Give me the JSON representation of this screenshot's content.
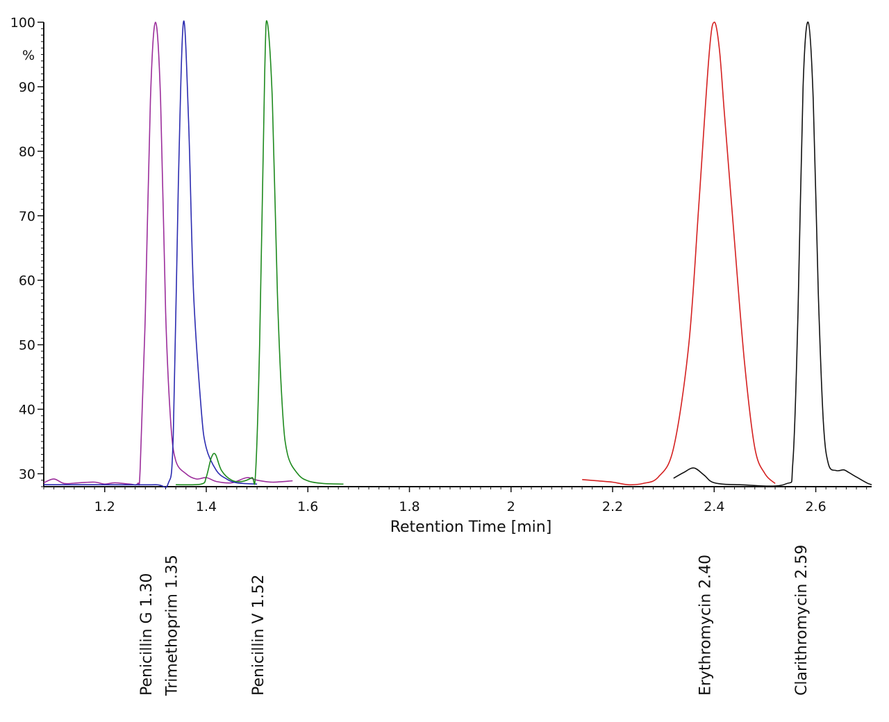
{
  "chart_data": {
    "type": "line",
    "xlabel": "Retention Time [min]",
    "ylabel": "%",
    "xlim": [
      1.08,
      2.71
    ],
    "ylim": [
      28,
      100
    ],
    "xticks": [
      "1.2",
      "1.4",
      "1.6",
      "1.8",
      "2",
      "2.2",
      "2.4",
      "2.6"
    ],
    "yticks": [
      "30",
      "40",
      "50",
      "60",
      "70",
      "80",
      "90",
      "100"
    ],
    "grid": false,
    "series": [
      {
        "color": "#9b2d9b",
        "points": [
          [
            1.08,
            28.6
          ],
          [
            1.1,
            29.2
          ],
          [
            1.12,
            28.5
          ],
          [
            1.15,
            28.6
          ],
          [
            1.18,
            28.7
          ],
          [
            1.2,
            28.4
          ],
          [
            1.22,
            28.6
          ],
          [
            1.25,
            28.4
          ],
          [
            1.265,
            28.5
          ],
          [
            1.27,
            31
          ],
          [
            1.28,
            55
          ],
          [
            1.29,
            88
          ],
          [
            1.3,
            100
          ],
          [
            1.31,
            88
          ],
          [
            1.32,
            55
          ],
          [
            1.33,
            38
          ],
          [
            1.34,
            32
          ],
          [
            1.36,
            30
          ],
          [
            1.38,
            29.2
          ],
          [
            1.4,
            29.4
          ],
          [
            1.42,
            28.8
          ],
          [
            1.45,
            28.6
          ],
          [
            1.48,
            29.4
          ],
          [
            1.5,
            29.0
          ],
          [
            1.53,
            28.7
          ],
          [
            1.57,
            28.9
          ]
        ]
      },
      {
        "color": "#2b2bb0",
        "points": [
          [
            1.08,
            28.3
          ],
          [
            1.2,
            28.3
          ],
          [
            1.3,
            28.3
          ],
          [
            1.325,
            28.5
          ],
          [
            1.335,
            36
          ],
          [
            1.345,
            75
          ],
          [
            1.355,
            100
          ],
          [
            1.365,
            85
          ],
          [
            1.375,
            58
          ],
          [
            1.39,
            40
          ],
          [
            1.4,
            34
          ],
          [
            1.42,
            30.5
          ],
          [
            1.44,
            29.2
          ],
          [
            1.46,
            28.6
          ],
          [
            1.5,
            28.4
          ]
        ]
      },
      {
        "color": "#1e8a1e",
        "points": [
          [
            1.34,
            28.3
          ],
          [
            1.39,
            28.4
          ],
          [
            1.4,
            29.5
          ],
          [
            1.41,
            32.5
          ],
          [
            1.418,
            33.0
          ],
          [
            1.43,
            30.5
          ],
          [
            1.45,
            29.0
          ],
          [
            1.47,
            28.8
          ],
          [
            1.49,
            29.4
          ],
          [
            1.497,
            30
          ],
          [
            1.505,
            50
          ],
          [
            1.515,
            92
          ],
          [
            1.52,
            100
          ],
          [
            1.53,
            88
          ],
          [
            1.54,
            58
          ],
          [
            1.55,
            40
          ],
          [
            1.56,
            33
          ],
          [
            1.58,
            30
          ],
          [
            1.6,
            28.9
          ],
          [
            1.63,
            28.5
          ],
          [
            1.67,
            28.4
          ]
        ]
      },
      {
        "color": "#d42020",
        "points": [
          [
            2.14,
            29.1
          ],
          [
            2.17,
            28.9
          ],
          [
            2.2,
            28.7
          ],
          [
            2.23,
            28.3
          ],
          [
            2.26,
            28.5
          ],
          [
            2.29,
            29.5
          ],
          [
            2.32,
            34
          ],
          [
            2.35,
            50
          ],
          [
            2.37,
            72
          ],
          [
            2.39,
            95
          ],
          [
            2.4,
            100
          ],
          [
            2.41,
            96
          ],
          [
            2.42,
            86
          ],
          [
            2.44,
            66
          ],
          [
            2.46,
            47
          ],
          [
            2.48,
            34
          ],
          [
            2.5,
            30
          ],
          [
            2.52,
            28.5
          ]
        ]
      },
      {
        "color": "#111111",
        "points": [
          [
            2.32,
            29.3
          ],
          [
            2.34,
            30.2
          ],
          [
            2.36,
            30.9
          ],
          [
            2.38,
            29.8
          ],
          [
            2.4,
            28.6
          ],
          [
            2.45,
            28.3
          ],
          [
            2.54,
            28.4
          ],
          [
            2.555,
            32
          ],
          [
            2.565,
            55
          ],
          [
            2.575,
            90
          ],
          [
            2.585,
            100
          ],
          [
            2.595,
            88
          ],
          [
            2.605,
            58
          ],
          [
            2.615,
            38
          ],
          [
            2.625,
            31.5
          ],
          [
            2.64,
            30.5
          ],
          [
            2.655,
            30.6
          ],
          [
            2.665,
            30.2
          ],
          [
            2.68,
            29.5
          ],
          [
            2.7,
            28.6
          ],
          [
            2.71,
            28.3
          ]
        ]
      }
    ],
    "peak_labels": [
      {
        "text": "Penicillin G 1.30",
        "x": 1.3
      },
      {
        "text": "Trimethoprim 1.35",
        "x": 1.35
      },
      {
        "text": "Penicillin V 1.52",
        "x": 1.52
      },
      {
        "text": "Erythromycin 2.40",
        "x": 2.4
      },
      {
        "text": "Clarithromycin 2.59",
        "x": 2.59
      }
    ]
  }
}
